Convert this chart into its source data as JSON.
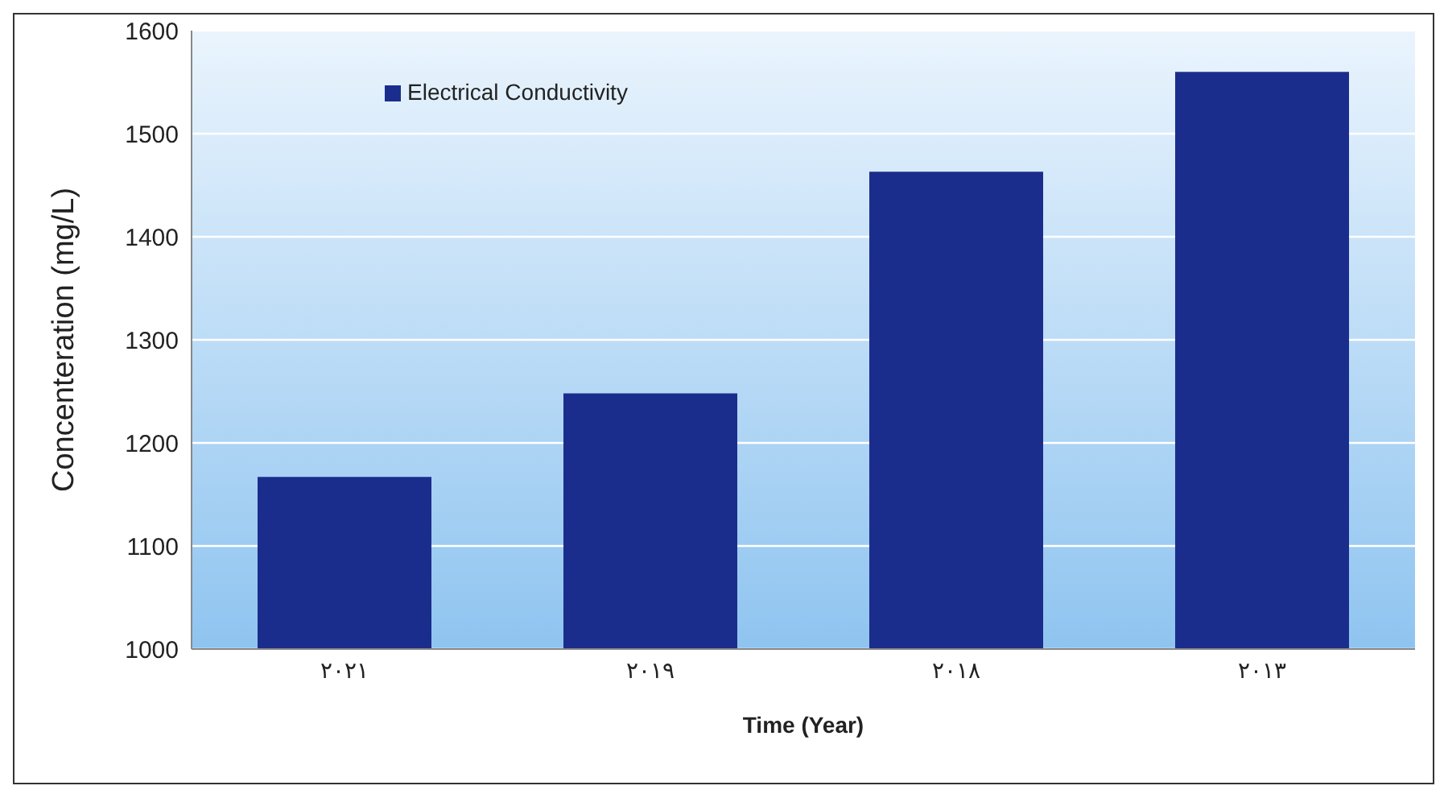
{
  "chart_data": {
    "type": "bar",
    "xlabel": "Time (Year)",
    "ylabel": "Concenteration (mg/L)",
    "categories": [
      "٢٠٢١",
      "٢٠١٩",
      "٢٠١٨",
      "٢٠١٣"
    ],
    "series": [
      {
        "name": "Electrical Conductivity",
        "color": "#1b2d8c",
        "values": [
          1167,
          1248,
          1463,
          1560
        ]
      }
    ],
    "ylim": [
      1000,
      1600
    ],
    "yticks": [
      1000,
      1100,
      1200,
      1300,
      1400,
      1500,
      1600
    ],
    "grid": "y",
    "legend": "top left"
  }
}
